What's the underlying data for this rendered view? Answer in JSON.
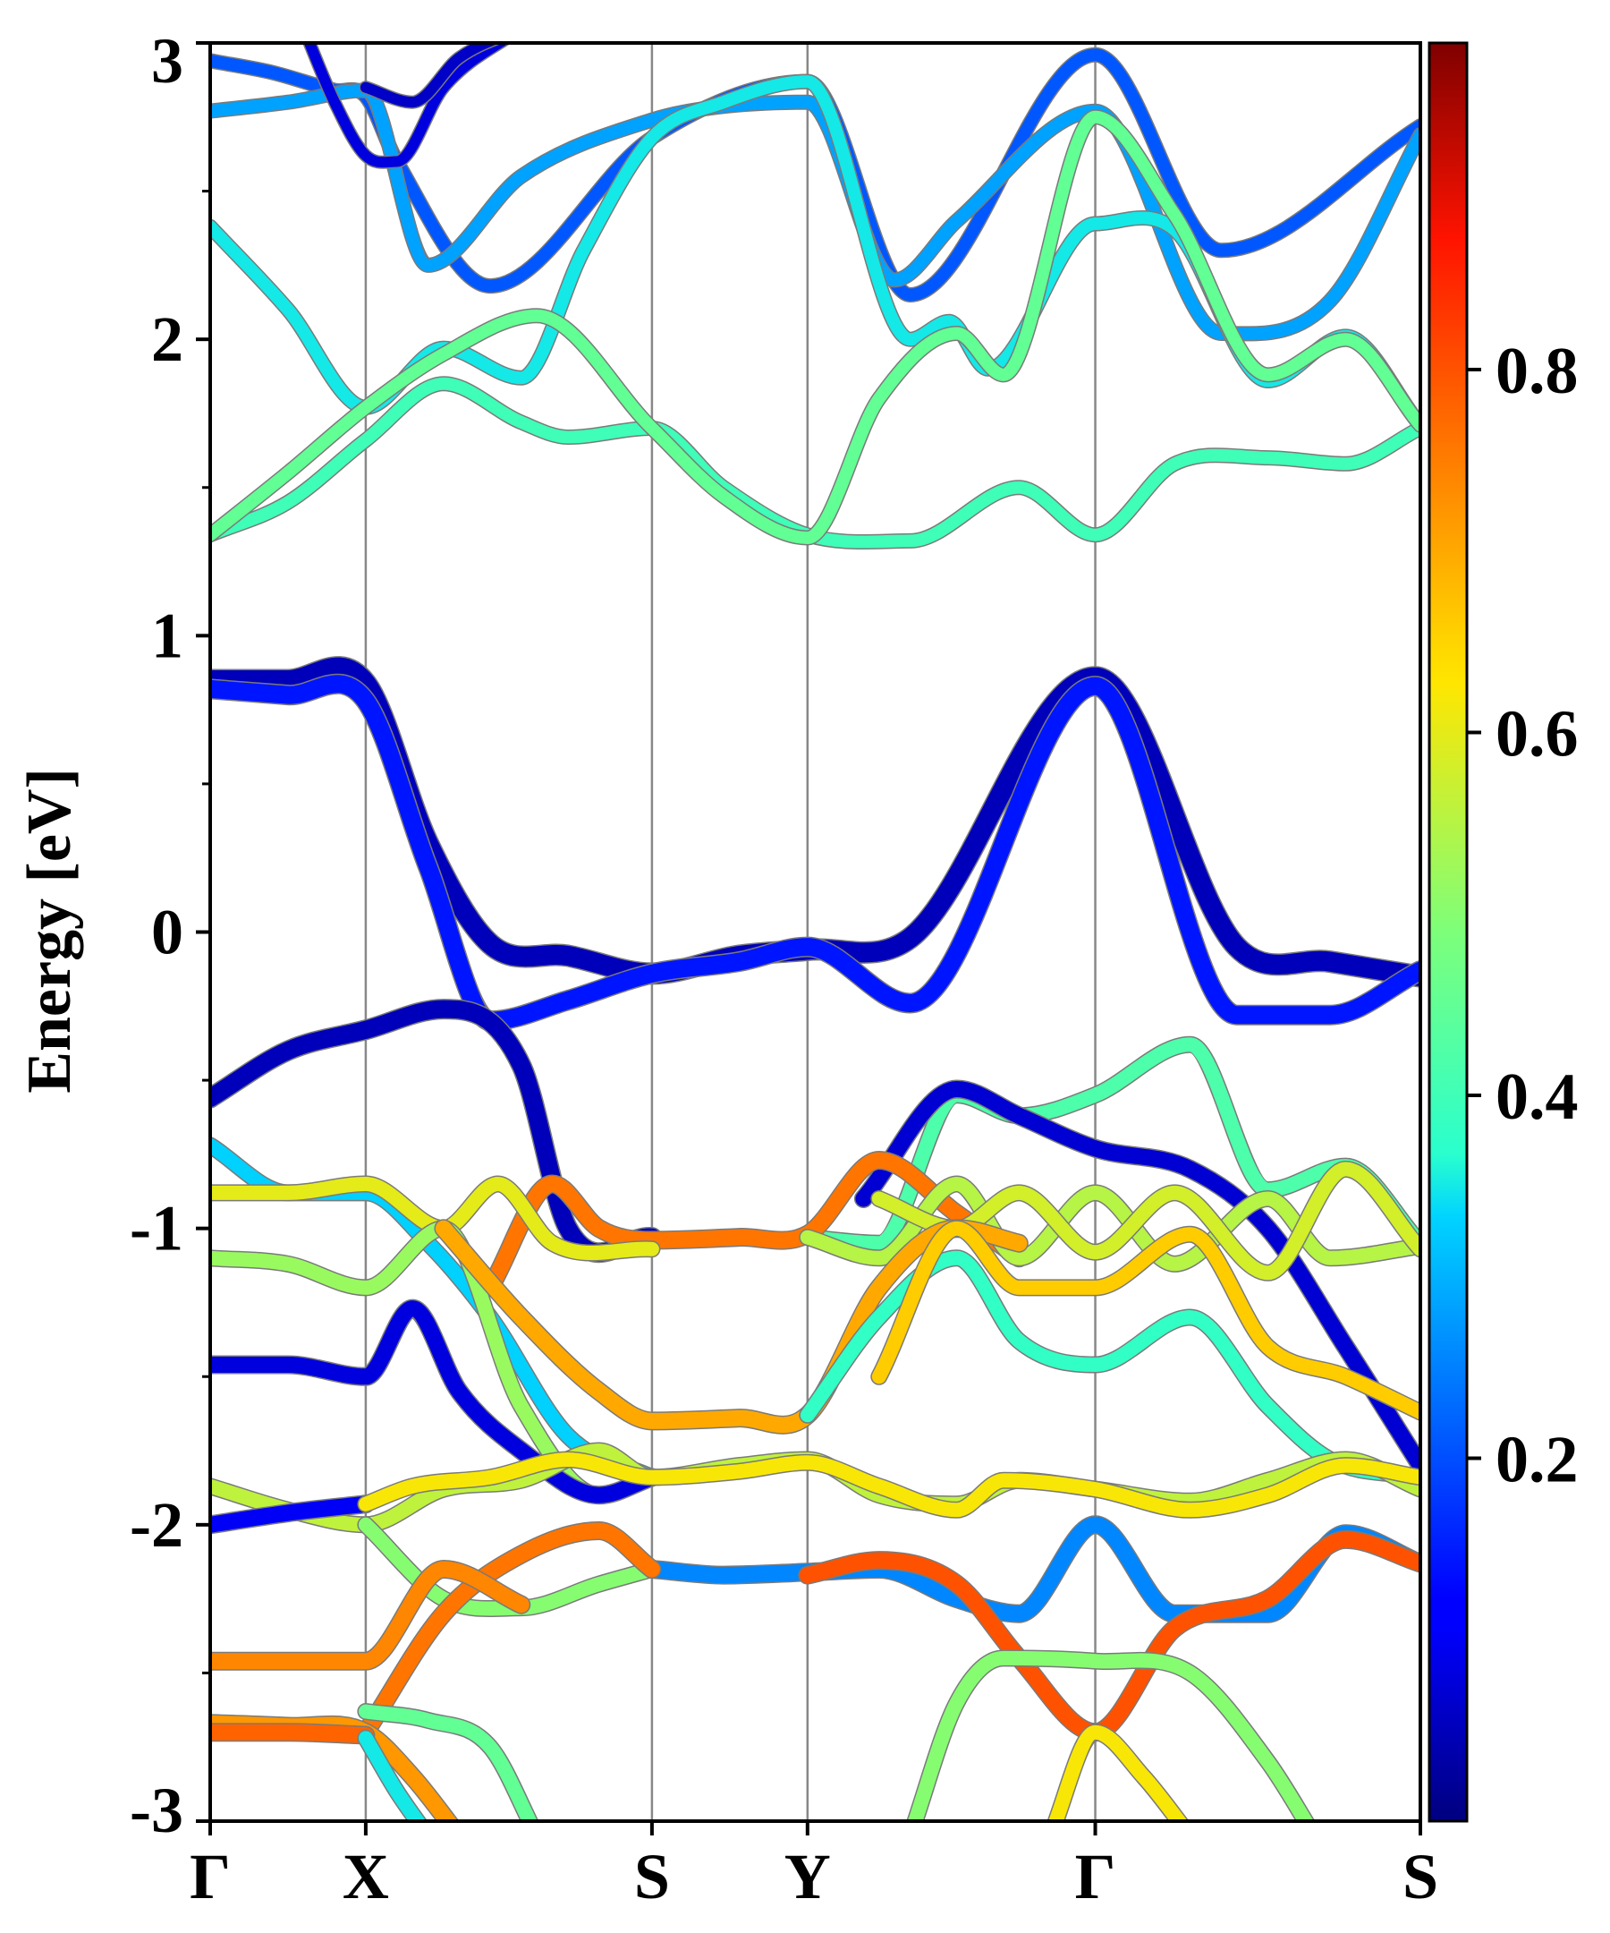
{
  "chart_data": {
    "type": "line",
    "title": "",
    "ylabel": "Energy [eV]",
    "xlabel": "",
    "ylim": [
      -3,
      3
    ],
    "yticks": [
      {
        "value": 3,
        "label": "3"
      },
      {
        "value": 2,
        "label": "2"
      },
      {
        "value": 1,
        "label": "1"
      },
      {
        "value": 0,
        "label": "0"
      },
      {
        "value": -1,
        "label": "-1"
      },
      {
        "value": -2,
        "label": "-2"
      },
      {
        "value": -3,
        "label": "-3"
      }
    ],
    "kpath": [
      {
        "label": "Γ",
        "pos": 0.0
      },
      {
        "label": "X",
        "pos": 1.0
      },
      {
        "label": "S",
        "pos": 2.84
      },
      {
        "label": "Y",
        "pos": 3.84
      },
      {
        "label": "Γ",
        "pos": 5.69
      },
      {
        "label": "S",
        "pos": 7.78
      }
    ],
    "colorbar": {
      "colormap": "jet",
      "range": [
        0.0,
        0.98
      ],
      "ticks": [
        {
          "value": 0.2,
          "label": "0.2"
        },
        {
          "value": 0.4,
          "label": "0.4"
        },
        {
          "value": 0.6,
          "label": "0.6"
        },
        {
          "value": 0.8,
          "label": "0.8"
        }
      ]
    },
    "bands": [
      {
        "c": 0.2,
        "w": 14,
        "k": [
          0,
          0.4,
          0.8,
          1.0,
          1.2,
          1.8,
          2.84,
          3.84,
          4.5,
          5.69,
          6.5,
          7.78
        ],
        "E": [
          2.94,
          2.9,
          2.84,
          2.82,
          2.6,
          2.18,
          2.68,
          2.87,
          2.15,
          2.96,
          2.3,
          2.72
        ]
      },
      {
        "c": 0.28,
        "w": 14,
        "k": [
          0,
          0.5,
          1.0,
          1.4,
          2.0,
          2.84,
          3.2,
          3.84,
          4.4,
          4.8,
          5.69,
          6.5,
          7.2,
          7.78
        ],
        "E": [
          2.77,
          2.8,
          2.84,
          2.25,
          2.55,
          2.74,
          2.78,
          2.8,
          2.2,
          2.4,
          2.77,
          2.02,
          2.13,
          2.69
        ]
      },
      {
        "c": 0.08,
        "w": 12,
        "k": [
          0.6,
          0.8,
          1.0,
          1.2,
          1.5,
          2.0
        ],
        "E": [
          3.05,
          2.8,
          2.62,
          2.6,
          2.85,
          3.05
        ]
      },
      {
        "c": 0.06,
        "w": 12,
        "k": [
          1.0,
          1.3,
          1.6,
          2.0
        ],
        "E": [
          2.85,
          2.8,
          2.95,
          3.05
        ]
      },
      {
        "c": 0.35,
        "w": 14,
        "k": [
          0,
          0.5,
          1.0,
          1.5,
          2.0,
          2.4,
          2.84,
          3.3,
          3.84,
          4.5,
          4.75,
          5.0,
          5.69,
          6.2,
          6.8,
          7.3,
          7.78
        ],
        "E": [
          2.38,
          2.1,
          1.77,
          1.97,
          1.87,
          2.3,
          2.68,
          2.8,
          2.87,
          2.0,
          2.06,
          1.9,
          2.39,
          2.37,
          1.86,
          2.01,
          1.71
        ]
      },
      {
        "c": 0.4,
        "w": 14,
        "k": [
          0,
          0.5,
          1.0,
          1.5,
          2.0,
          2.3,
          2.84,
          3.3,
          3.84,
          4.5,
          5.2,
          5.69,
          6.2,
          6.8,
          7.3,
          7.78
        ],
        "E": [
          1.34,
          1.45,
          1.66,
          1.85,
          1.72,
          1.67,
          1.7,
          1.5,
          1.34,
          1.32,
          1.5,
          1.34,
          1.58,
          1.6,
          1.58,
          1.7
        ]
      },
      {
        "c": 0.45,
        "w": 14,
        "k": [
          0,
          0.5,
          1.0,
          1.5,
          2.1,
          2.84,
          3.3,
          3.84,
          4.3,
          4.8,
          5.1,
          5.69,
          6.2,
          6.8,
          7.3,
          7.78
        ],
        "E": [
          1.34,
          1.55,
          1.77,
          1.95,
          2.08,
          1.7,
          1.47,
          1.33,
          1.8,
          2.02,
          1.88,
          2.75,
          2.42,
          1.88,
          2.0,
          1.71
        ]
      },
      {
        "c": 0.05,
        "w": 22,
        "k": [
          0,
          0.5,
          1.0,
          1.4,
          1.8,
          2.3,
          2.84,
          3.4,
          3.84,
          4.5,
          5.69,
          6.6,
          7.2,
          7.78
        ],
        "E": [
          0.85,
          0.85,
          0.84,
          0.3,
          -0.04,
          -0.08,
          -0.14,
          -0.08,
          -0.06,
          -0.02,
          0.86,
          -0.05,
          -0.1,
          -0.15
        ]
      },
      {
        "c": 0.13,
        "w": 20,
        "k": [
          0,
          0.5,
          1.0,
          1.4,
          1.8,
          2.3,
          2.84,
          3.4,
          3.84,
          4.5,
          5.69,
          6.6,
          7.2,
          7.78
        ],
        "E": [
          0.82,
          0.8,
          0.78,
          0.22,
          -0.3,
          -0.23,
          -0.14,
          -0.1,
          -0.05,
          -0.24,
          0.83,
          -0.28,
          -0.28,
          -0.13
        ]
      },
      {
        "c": 0.05,
        "w": 20,
        "k": [
          0,
          0.5,
          1.0,
          1.5,
          2.0,
          2.3,
          2.84
        ],
        "E": [
          -0.56,
          -0.4,
          -0.33,
          -0.26,
          -0.45,
          -1.0,
          -1.03
        ]
      },
      {
        "c": 0.42,
        "w": 16,
        "k": [
          3.84,
          4.3,
          4.8,
          5.2,
          5.69,
          6.3,
          6.8,
          7.3,
          7.78
        ],
        "E": [
          -1.03,
          -1.05,
          -0.55,
          -0.62,
          -0.55,
          -0.38,
          -0.87,
          -0.79,
          -1.05
        ]
      },
      {
        "c": 0.07,
        "w": 18,
        "k": [
          4.2,
          4.8,
          5.2,
          5.69,
          6.3,
          6.8,
          7.3,
          7.78
        ],
        "E": [
          -0.9,
          -0.53,
          -0.62,
          -0.73,
          -0.8,
          -1.0,
          -1.4,
          -1.8
        ]
      },
      {
        "c": 0.33,
        "w": 16,
        "k": [
          0,
          0.5,
          1.0,
          1.4,
          1.8,
          2.3,
          2.84
        ],
        "E": [
          -0.72,
          -0.88,
          -0.88,
          -1.05,
          -1.3,
          -1.7,
          -1.84
        ]
      },
      {
        "c": 0.76,
        "w": 18,
        "k": [
          1.8,
          2.2,
          2.5,
          2.84,
          3.4,
          3.84,
          4.3,
          4.8,
          5.2
        ],
        "E": [
          -1.2,
          -0.85,
          -1.0,
          -1.04,
          -1.03,
          -1.02,
          -0.77,
          -0.95,
          -1.1
        ]
      },
      {
        "c": 0.6,
        "w": 16,
        "k": [
          0,
          0.5,
          1.0,
          1.5,
          1.85,
          2.2,
          2.84
        ],
        "E": [
          -0.88,
          -0.88,
          -0.85,
          -1.0,
          -0.85,
          -1.05,
          -1.07
        ]
      },
      {
        "c": 0.55,
        "w": 16,
        "k": [
          3.84,
          4.3,
          4.8,
          5.2,
          5.69,
          6.2,
          6.8,
          7.2,
          7.78
        ],
        "E": [
          -1.03,
          -1.1,
          -0.85,
          -1.1,
          -0.88,
          -1.12,
          -0.9,
          -1.1,
          -1.06
        ]
      },
      {
        "c": 0.58,
        "w": 16,
        "k": [
          4.3,
          4.8,
          5.2,
          5.69,
          6.2,
          6.8,
          7.3,
          7.78
        ],
        "E": [
          -0.9,
          -1.0,
          -0.88,
          -1.08,
          -0.88,
          -1.15,
          -0.8,
          -1.07
        ]
      },
      {
        "c": 0.52,
        "w": 16,
        "k": [
          0,
          0.5,
          1.0,
          1.5,
          2.0,
          2.5,
          2.84
        ],
        "E": [
          -1.1,
          -1.12,
          -1.2,
          -1.0,
          -1.6,
          -1.9,
          -1.84
        ]
      },
      {
        "c": 0.7,
        "w": 18,
        "k": [
          1.5,
          2.0,
          2.5,
          2.84,
          3.4,
          3.84,
          4.3,
          4.8,
          5.2
        ],
        "E": [
          -1.0,
          -1.3,
          -1.55,
          -1.65,
          -1.64,
          -1.63,
          -1.2,
          -1.0,
          -1.05
        ]
      },
      {
        "c": 0.08,
        "w": 18,
        "k": [
          0,
          0.5,
          1.0,
          1.3,
          1.6,
          2.0,
          2.5,
          2.84
        ],
        "E": [
          -1.46,
          -1.46,
          -1.5,
          -1.27,
          -1.55,
          -1.75,
          -1.9,
          -1.84
        ]
      },
      {
        "c": 0.38,
        "w": 16,
        "k": [
          3.84,
          4.3,
          4.8,
          5.2,
          5.69,
          6.3,
          6.8,
          7.2,
          7.78
        ],
        "E": [
          -1.63,
          -1.3,
          -1.1,
          -1.38,
          -1.46,
          -1.3,
          -1.6,
          -1.78,
          -1.84
        ]
      },
      {
        "c": 0.66,
        "w": 16,
        "k": [
          4.3,
          4.8,
          5.2,
          5.69,
          6.3,
          6.8,
          7.3,
          7.78
        ],
        "E": [
          -1.5,
          -1.0,
          -1.2,
          -1.2,
          -1.02,
          -1.4,
          -1.5,
          -1.62
        ]
      },
      {
        "c": 0.56,
        "w": 16,
        "k": [
          0,
          0.5,
          1.0,
          1.5,
          2.0,
          2.5,
          2.84,
          3.4,
          3.84,
          4.3,
          4.8,
          5.2,
          5.69,
          6.3,
          6.8,
          7.3,
          7.78
        ],
        "E": [
          -1.87,
          -1.95,
          -2.0,
          -1.88,
          -1.85,
          -1.75,
          -1.84,
          -1.8,
          -1.78,
          -1.9,
          -1.93,
          -1.85,
          -1.88,
          -1.92,
          -1.85,
          -1.78,
          -1.88
        ]
      },
      {
        "c": 0.1,
        "w": 18,
        "k": [
          0,
          0.5,
          1.0
        ],
        "E": [
          -2.0,
          -1.96,
          -1.93
        ]
      },
      {
        "c": 0.62,
        "w": 16,
        "k": [
          1.0,
          1.3,
          1.8,
          2.3,
          2.84,
          3.4,
          3.84,
          4.3,
          4.8,
          5.1,
          5.69,
          6.3,
          6.8,
          7.3,
          7.78
        ],
        "E": [
          -1.93,
          -1.87,
          -1.84,
          -1.78,
          -1.84,
          -1.82,
          -1.79,
          -1.87,
          -1.95,
          -1.85,
          -1.88,
          -1.95,
          -1.9,
          -1.8,
          -1.84
        ]
      },
      {
        "c": 0.5,
        "w": 16,
        "k": [
          1.0,
          1.5,
          2.0,
          2.5,
          2.84
        ],
        "E": [
          -2.0,
          -2.25,
          -2.28,
          -2.2,
          -2.15
        ]
      },
      {
        "c": 0.25,
        "w": 18,
        "k": [
          2.84,
          3.3,
          3.84,
          4.3,
          4.8,
          5.2,
          5.69,
          6.2,
          6.8,
          7.3,
          7.78
        ],
        "E": [
          -2.15,
          -2.17,
          -2.16,
          -2.15,
          -2.25,
          -2.3,
          -2.0,
          -2.3,
          -2.3,
          -2.03,
          -2.13
        ]
      },
      {
        "c": 0.76,
        "w": 18,
        "k": [
          1.0,
          1.5,
          2.0,
          2.5,
          2.84
        ],
        "E": [
          -2.7,
          -2.3,
          -2.1,
          -2.02,
          -2.15
        ]
      },
      {
        "c": 0.8,
        "w": 18,
        "k": [
          3.84,
          4.3,
          4.8,
          5.2,
          5.69,
          6.2,
          6.8,
          7.3,
          7.78
        ],
        "E": [
          -2.17,
          -2.12,
          -2.2,
          -2.45,
          -2.7,
          -2.35,
          -2.25,
          -2.05,
          -2.13
        ]
      },
      {
        "c": 0.74,
        "w": 18,
        "k": [
          0,
          0.5,
          1.0,
          1.5,
          2.0
        ],
        "E": [
          -2.46,
          -2.46,
          -2.46,
          -2.15,
          -2.27
        ]
      },
      {
        "c": 0.45,
        "w": 16,
        "k": [
          1.0,
          1.4,
          1.8,
          2.1
        ],
        "E": [
          -2.63,
          -2.66,
          -2.75,
          -3.05
        ]
      },
      {
        "c": 0.72,
        "w": 18,
        "k": [
          0,
          0.5,
          1.0,
          1.3,
          1.6
        ],
        "E": [
          -2.67,
          -2.68,
          -2.7,
          -2.85,
          -3.05
        ]
      },
      {
        "c": 0.78,
        "w": 18,
        "k": [
          0,
          0.5,
          1.0
        ],
        "E": [
          -2.7,
          -2.7,
          -2.71
        ]
      },
      {
        "c": 0.35,
        "w": 16,
        "k": [
          1.0,
          1.2,
          1.4
        ],
        "E": [
          -2.72,
          -2.9,
          -3.05
        ]
      },
      {
        "c": 0.5,
        "w": 16,
        "k": [
          4.5,
          4.8,
          5.1,
          5.69,
          6.3,
          6.8,
          7.1
        ],
        "E": [
          -3.05,
          -2.6,
          -2.45,
          -2.46,
          -2.5,
          -2.8,
          -3.05
        ]
      },
      {
        "c": 0.62,
        "w": 16,
        "k": [
          5.4,
          5.69,
          6.0,
          6.3
        ],
        "E": [
          -3.05,
          -2.7,
          -2.85,
          -3.05
        ]
      }
    ]
  }
}
